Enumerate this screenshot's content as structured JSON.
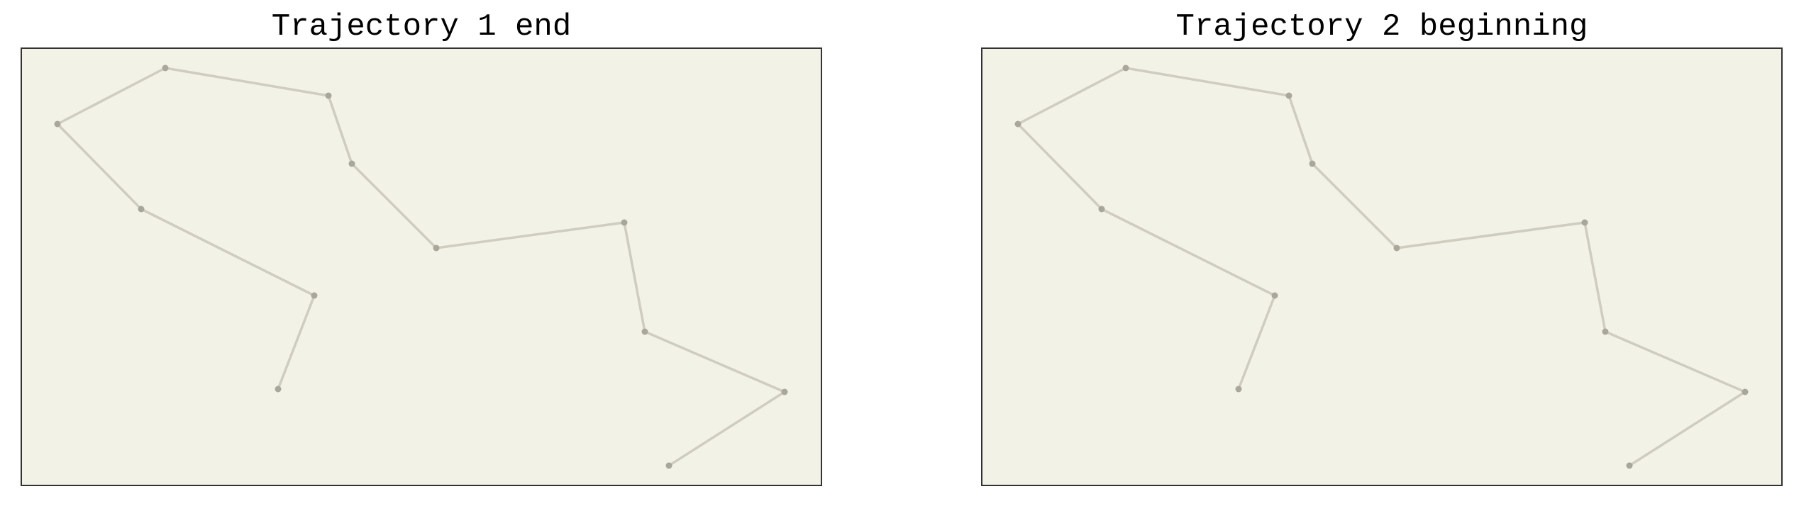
{
  "panels": [
    {
      "title": "Trajectory 1 end",
      "points": [
        [
          233,
          96
        ],
        [
          81,
          175
        ],
        [
          199,
          295
        ],
        [
          443,
          417
        ],
        [
          392,
          549
        ],
        [
          463,
          135
        ],
        [
          496,
          231
        ],
        [
          615,
          350
        ],
        [
          880,
          314
        ],
        [
          909,
          468
        ],
        [
          1106,
          553
        ],
        [
          943,
          657
        ]
      ],
      "segments": [
        [
          0,
          1
        ],
        [
          1,
          2
        ],
        [
          2,
          3
        ],
        [
          3,
          4
        ],
        [
          0,
          5
        ],
        [
          5,
          6
        ],
        [
          6,
          7
        ],
        [
          7,
          8
        ],
        [
          8,
          9
        ],
        [
          9,
          10
        ],
        [
          10,
          11
        ]
      ]
    },
    {
      "title": "Trajectory 2 beginning",
      "points": [
        [
          233,
          96
        ],
        [
          81,
          175
        ],
        [
          199,
          295
        ],
        [
          443,
          417
        ],
        [
          392,
          549
        ],
        [
          463,
          135
        ],
        [
          496,
          231
        ],
        [
          615,
          350
        ],
        [
          880,
          314
        ],
        [
          909,
          468
        ],
        [
          1106,
          553
        ],
        [
          943,
          657
        ]
      ],
      "segments": [
        [
          0,
          1
        ],
        [
          1,
          2
        ],
        [
          2,
          3
        ],
        [
          3,
          4
        ],
        [
          0,
          5
        ],
        [
          5,
          6
        ],
        [
          6,
          7
        ],
        [
          7,
          8
        ],
        [
          8,
          9
        ],
        [
          9,
          10
        ],
        [
          10,
          11
        ]
      ]
    }
  ],
  "colors": {
    "panel_fill": "#f3f2e7",
    "panel_border": "#333333",
    "line": "#cfccc0",
    "point": "#a9a69a"
  }
}
